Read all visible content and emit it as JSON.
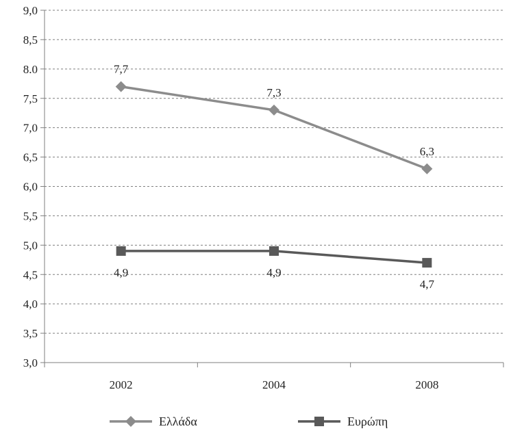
{
  "chart_data": {
    "type": "line",
    "categories": [
      "2002",
      "2004",
      "2008"
    ],
    "ylim": [
      3.0,
      9.0
    ],
    "ystep": 0.5,
    "y_tick_labels": [
      "3,0",
      "3,5",
      "4,0",
      "4,5",
      "5,0",
      "5,5",
      "6,0",
      "6,5",
      "7,0",
      "7,5",
      "8.0",
      "8,5",
      "9,0"
    ],
    "grid": true,
    "legend_position": "bottom",
    "series": [
      {
        "name": "Ελλάδα",
        "values": [
          7.7,
          7.3,
          6.3
        ],
        "labels": [
          "7,7",
          "7,3",
          "6,3"
        ],
        "color": "#8c8c8c",
        "marker": "diamond",
        "label_position": "above"
      },
      {
        "name": "Ευρώπη",
        "values": [
          4.9,
          4.9,
          4.7
        ],
        "labels": [
          "4,9",
          "4,9",
          "4,7"
        ],
        "color": "#595959",
        "marker": "square",
        "label_position": "below"
      }
    ]
  }
}
